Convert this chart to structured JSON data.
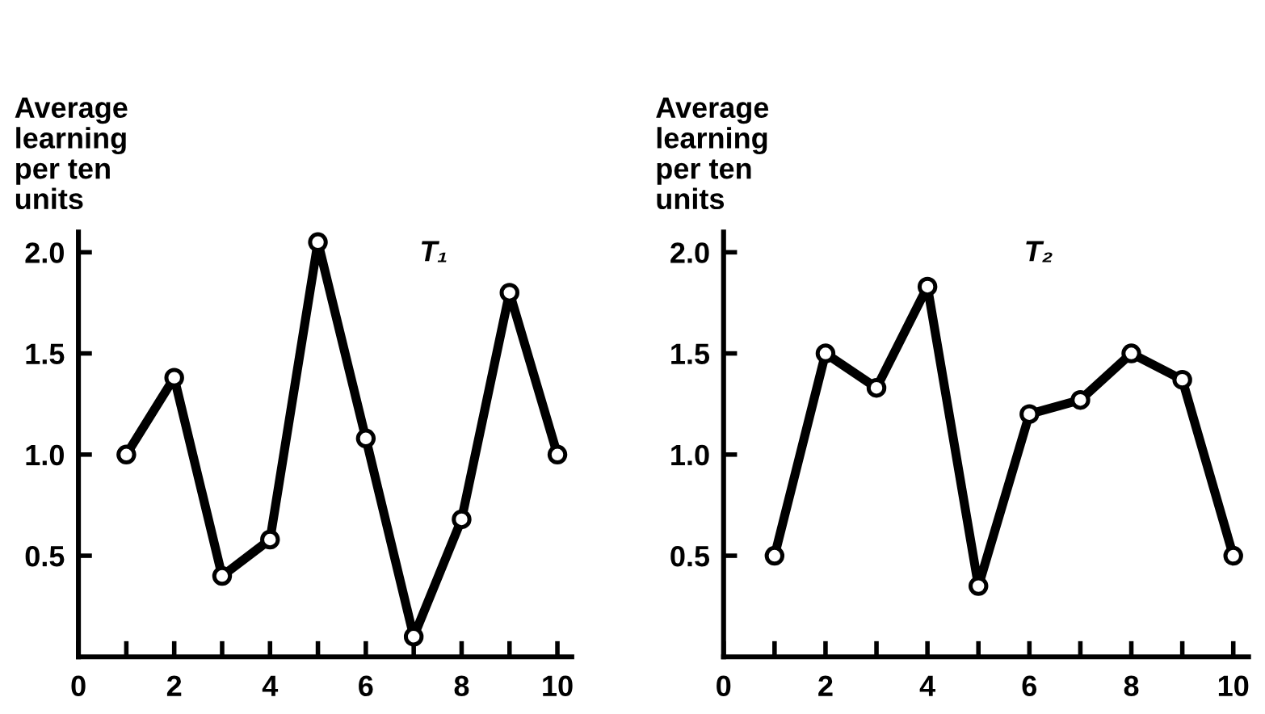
{
  "chart_data": [
    {
      "type": "line",
      "title": "T₁",
      "ylabel": "Average\nlearning\nper ten\nunits",
      "x": [
        1,
        2,
        3,
        4,
        5,
        6,
        7,
        8,
        9,
        10
      ],
      "series": [
        {
          "color": "#000000",
          "values": [
            1.0,
            1.38,
            0.4,
            0.58,
            2.05,
            1.08,
            0.1,
            0.68,
            1.8,
            1.0
          ]
        }
      ],
      "xlim": [
        0,
        10.3
      ],
      "ylim": [
        0,
        2.1
      ],
      "xticks": [
        0,
        {
          "value": 1,
          "label": null
        },
        2,
        {
          "value": 3,
          "label": null
        },
        4,
        {
          "value": 5,
          "label": null
        },
        6,
        {
          "value": 7,
          "label": null
        },
        8,
        {
          "value": 9,
          "label": null
        },
        10
      ],
      "yticks": [
        {
          "value": 0.5,
          "label": "0.5"
        },
        {
          "value": 1.0,
          "label": "1.0"
        },
        {
          "value": 1.5,
          "label": "1.5"
        },
        {
          "value": 2.0,
          "label": "2.0"
        }
      ],
      "marker": "circle",
      "line_style": "solid",
      "grid": false,
      "legend": false
    },
    {
      "type": "line",
      "title": "T₂",
      "ylabel": "Average\nlearning\nper ten\nunits",
      "x": [
        1,
        2,
        3,
        4,
        5,
        6,
        7,
        8,
        9,
        10
      ],
      "series": [
        {
          "color": "#000000",
          "values": [
            0.5,
            1.5,
            1.33,
            1.83,
            0.35,
            1.2,
            1.27,
            1.5,
            1.37,
            0.5
          ]
        }
      ],
      "xlim": [
        0,
        10.3
      ],
      "ylim": [
        0,
        2.1
      ],
      "xticks": [
        0,
        {
          "value": 1,
          "label": null
        },
        2,
        {
          "value": 3,
          "label": null
        },
        4,
        {
          "value": 5,
          "label": null
        },
        6,
        {
          "value": 7,
          "label": null
        },
        8,
        {
          "value": 9,
          "label": null
        },
        10
      ],
      "yticks": [
        {
          "value": 0.5,
          "label": "0.5"
        },
        {
          "value": 1.0,
          "label": "1.0"
        },
        {
          "value": 1.5,
          "label": "1.5"
        },
        {
          "value": 2.0,
          "label": "2.0"
        }
      ],
      "marker": "circle",
      "line_style": "solid",
      "grid": false,
      "legend": false
    }
  ]
}
